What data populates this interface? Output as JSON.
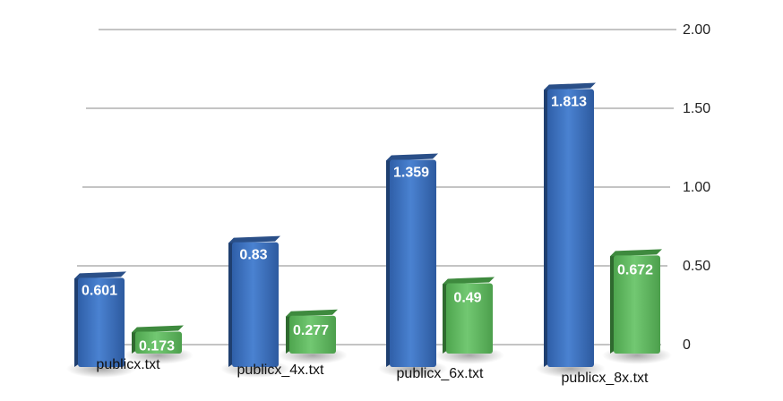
{
  "chart_data": {
    "type": "bar",
    "title": "",
    "xlabel": "",
    "ylabel": "",
    "categories": [
      "publicx.txt",
      "publicx_4x.txt",
      "publicx_6x.txt",
      "publicx_8x.txt"
    ],
    "series": [
      {
        "values": [
          0.601,
          0.83,
          1.359,
          1.813
        ],
        "color": "#3a6fbf"
      },
      {
        "values": [
          0.173,
          0.277,
          0.49,
          0.672
        ],
        "color": "#5cb85c"
      }
    ],
    "value_labels": [
      [
        "0.601",
        "0.83",
        "1.359",
        "1.813"
      ],
      [
        "0.173",
        "0.277",
        "0.49",
        "0.672"
      ]
    ],
    "ylim": [
      0,
      2
    ],
    "yticks": [
      {
        "value": 0,
        "label": "0"
      },
      {
        "value": 0.5,
        "label": "0.50"
      },
      {
        "value": 1,
        "label": "1.00"
      },
      {
        "value": 1.5,
        "label": "1.50"
      },
      {
        "value": 2,
        "label": "2.00"
      }
    ],
    "y_axis_position": "right",
    "grid": true,
    "legend": "none",
    "style": "3d-perspective-bars"
  }
}
